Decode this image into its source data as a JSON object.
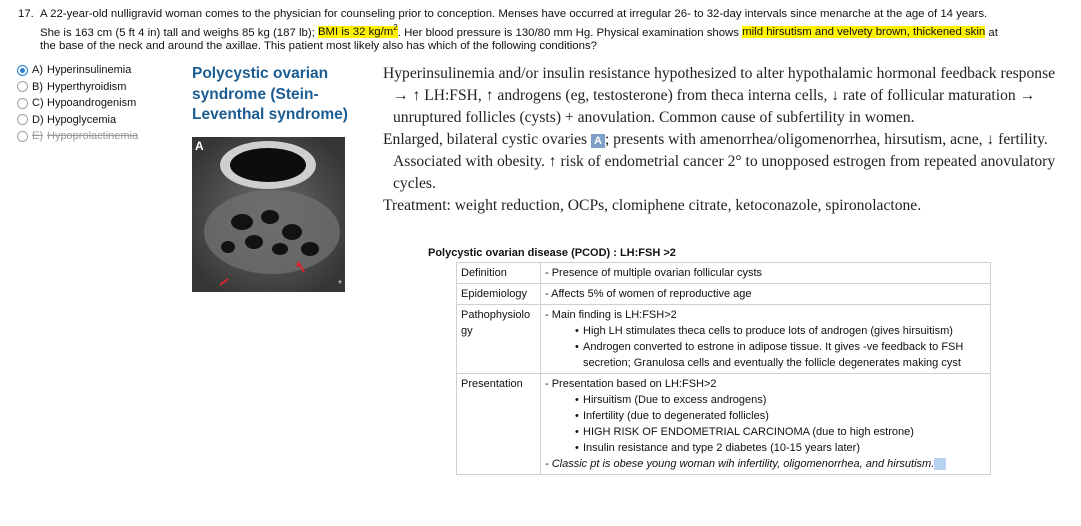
{
  "question": {
    "number": "17.",
    "line1": "A 22-year-old nulligravid woman comes to the physician for counseling prior to conception. Menses have occurred at irregular 26- to 32-day intervals since menarche at the age of 14 years.",
    "line2_a": "She is 163 cm (5 ft 4 in) tall and weighs 85 kg (187 lb); ",
    "line2_bmi": "BMI is 32 kg/m",
    "line2_bmi_sup": "2",
    "line2_b": ". Her blood pressure is 130/80 mm Hg. Physical examination shows ",
    "line2_findings": "mild hirsutism and velvety brown, thickened skin",
    "line2_c": " at",
    "line3": "the base of the neck and around the axillae. This patient most likely also has which of the following conditions?"
  },
  "options": [
    {
      "letter": "A)",
      "text": "Hyperinsulinemia",
      "selected": true,
      "struck": false
    },
    {
      "letter": "B)",
      "text": "Hyperthyroidism",
      "selected": false,
      "struck": false
    },
    {
      "letter": "C)",
      "text": "Hypoandrogenism",
      "selected": false,
      "struck": false
    },
    {
      "letter": "D)",
      "text": "Hypoglycemia",
      "selected": false,
      "struck": false
    },
    {
      "letter": "E)",
      "text": "Hypoprolactinemia",
      "selected": false,
      "struck": true
    }
  ],
  "topic_title": "Polycystic ovarian syndrome (Stein-Leventhal syndrome)",
  "image": {
    "label": "A",
    "corner": "*"
  },
  "description": {
    "p1": "Hyperinsulinemia and/or insulin resistance hypothesized to alter hypothalamic hormonal feedback response → ↑ LH:FSH, ↑ androgens (eg, testosterone) from theca interna cells, ↓ rate of follicular maturation → unruptured follicles (cysts) + anovulation. Common cause of subfertility in women.",
    "p2_a": "Enlarged, bilateral cystic ovaries ",
    "p2_box": "A",
    "p2_b": "; presents with amenorrhea/oligomenorrhea, hirsutism, acne, ↓ fertility. Associated with obesity. ↑ risk of endometrial cancer 2° to unopposed estrogen from repeated anovulatory cycles.",
    "p3": "Treatment: weight reduction, OCPs, clomiphene citrate, ketoconazole, spironolactone."
  },
  "table": {
    "title": "Polycystic ovarian disease (PCOD) : LH:FSH >2",
    "definition_key": "Definition",
    "definition_val": "- Presence of multiple ovarian follicular cysts",
    "epi_key": "Epidemiology",
    "epi_val": "- Affects 5% of women of reproductive age",
    "patho_key": "Pathophysiology",
    "patho_main": "- Main finding is LH:FSH>2",
    "patho_bullets": [
      "High LH stimulates theca cells to produce lots of androgen (gives hirsuitism)",
      "Androgen converted to estrone in adipose tissue. It gives -ve feedback to FSH secretion; Granulosa cells and eventually the follicle degenerates making cyst"
    ],
    "pres_key": "Presentation",
    "pres_main": "- Presentation based on LH:FSH>2",
    "pres_bullets": [
      "Hirsuitism (Due to excess androgens)",
      "Infertility (due to degenerated follicles)",
      "HIGH RISK OF ENDOMETRIAL CARCINOMA (due to high estrone)",
      "Insulin resistance and type 2 diabetes (10-15 years later)"
    ],
    "classic": "- Classic pt is obese young woman wih infertility, oligomenorrhea, and hirsutism."
  }
}
